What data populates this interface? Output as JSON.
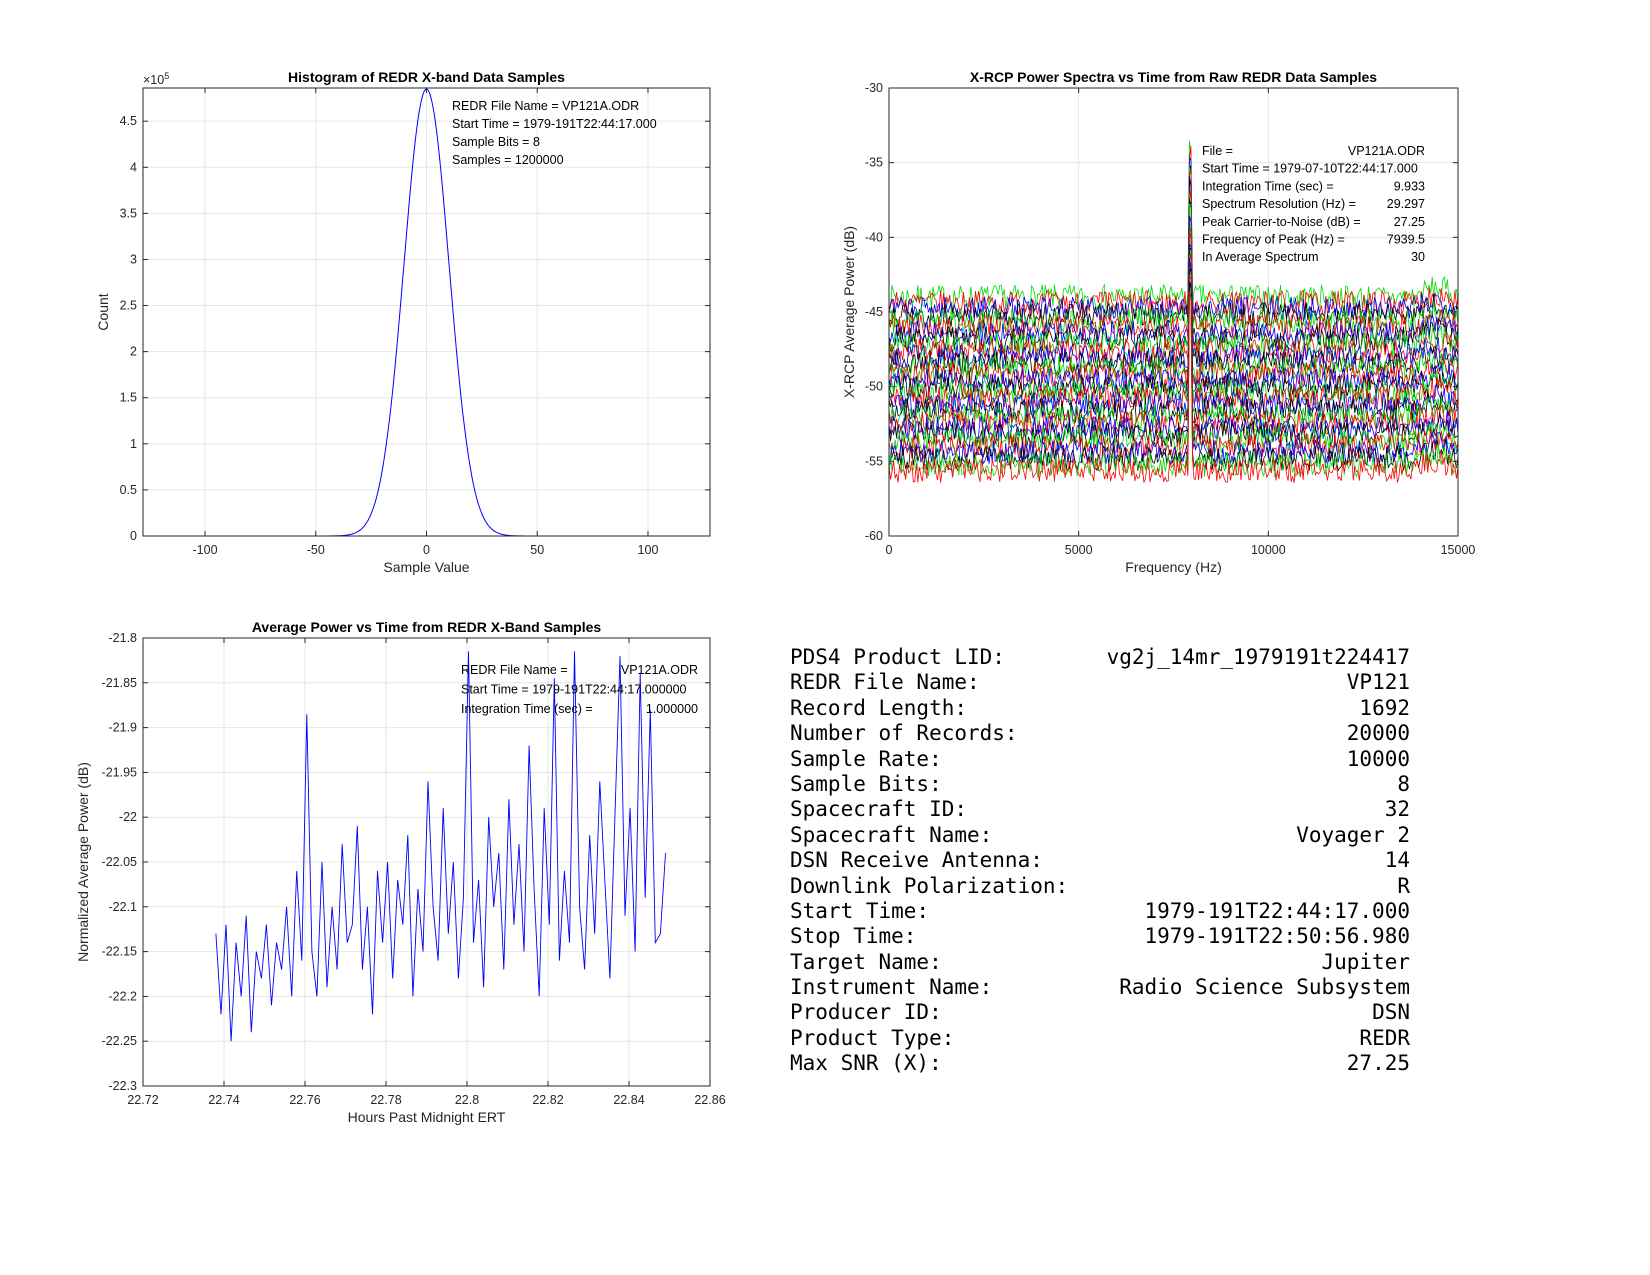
{
  "chart_data": [
    {
      "id": "hist",
      "type": "line",
      "title": "Histogram of REDR X-band Data Samples",
      "xlabel": "Sample Value",
      "ylabel": "Count",
      "xlim": [
        -128,
        128
      ],
      "ylim": [
        0,
        4.86
      ],
      "exponent_label": "×10",
      "exponent_power": "5",
      "xticks": [
        -100,
        -50,
        0,
        50,
        100
      ],
      "xtick_labels": [
        "-100",
        "-50",
        "0",
        "50",
        "100"
      ],
      "yticks": [
        0,
        0.5,
        1,
        1.5,
        2,
        2.5,
        3,
        3.5,
        4,
        4.5
      ],
      "yticks_labels": [
        "0",
        "0.5",
        "1",
        "1.5",
        "2",
        "2.5",
        "3",
        "3.5",
        "4",
        "4.5"
      ],
      "series": [
        {
          "name": "histogram",
          "color": "#0000ff",
          "model": "gaussian",
          "peak": 4.85,
          "mean": 0,
          "sigma": 10.2
        }
      ],
      "grid": true,
      "annotations": [
        "REDR File Name = VP121A.ODR",
        "Start Time = 1979-191T22:44:17.000",
        "Sample Bits = 8",
        "Samples = 1200000"
      ]
    },
    {
      "id": "spec",
      "type": "line",
      "title": "X-RCP Power Spectra vs Time from Raw REDR Data Samples",
      "xlabel": "Frequency (Hz)",
      "ylabel": "X-RCP Average Power (dB)",
      "xlim": [
        0,
        15000
      ],
      "ylim": [
        -60,
        -30
      ],
      "xticks": [
        0,
        5000,
        10000,
        15000
      ],
      "xtick_labels": [
        "0",
        "5000",
        "10000",
        "15000"
      ],
      "yticks": [
        -60,
        -55,
        -50,
        -45,
        -40,
        -35,
        -30
      ],
      "yticks_labels": [
        "-60",
        "-55",
        "-50",
        "-45",
        "-40",
        "-35",
        "-30"
      ],
      "series_colors": [
        "#00dd00",
        "#ff0000",
        "#0000ff",
        "#000000"
      ],
      "num_spectra": 30,
      "baseline_top_db": -44,
      "baseline_bottom_db": -55.6,
      "noise_db": 0.6,
      "peak_frequency_hz": 7939.5,
      "peak_level_db": -34,
      "grid": true,
      "annotations": [
        [
          "File =",
          "VP121A.ODR"
        ],
        [
          "Start Time = 1979-07-10T22:44:17.000",
          ""
        ],
        [
          "Integration Time (sec) =",
          "9.933"
        ],
        [
          "Spectrum Resolution (Hz) =",
          "29.297"
        ],
        [
          "Peak Carrier-to-Noise (dB) =",
          "27.25"
        ],
        [
          "  Frequency of Peak (Hz) =",
          "7939.5"
        ],
        [
          "  In Average Spectrum",
          "30"
        ]
      ]
    },
    {
      "id": "power",
      "type": "line",
      "title": "Average Power vs Time from REDR X-Band Samples",
      "xlabel": "Hours Past Midnight ERT",
      "ylabel": "Normalized Average Power (dB)",
      "xlim": [
        22.72,
        22.86
      ],
      "ylim": [
        -22.3,
        -21.8
      ],
      "xticks": [
        22.72,
        22.74,
        22.76,
        22.78,
        22.8,
        22.82,
        22.84,
        22.86
      ],
      "xtick_labels": [
        "22.72",
        "22.74",
        "22.76",
        "22.78",
        "22.8",
        "22.82",
        "22.84",
        "22.86"
      ],
      "yticks": [
        -22.3,
        -22.25,
        -22.2,
        -22.15,
        -22.1,
        -22.05,
        -22,
        -21.95,
        -21.9,
        -21.85,
        -21.8
      ],
      "yticks_labels": [
        "-22.3",
        "-22.25",
        "-22.2",
        "-22.15",
        "-22.1",
        "-22.05",
        "-22",
        "-21.95",
        "-21.9",
        "-21.85",
        "-21.8"
      ],
      "x_start": 22.738,
      "x_end": 22.849,
      "values": [
        -22.13,
        -22.22,
        -22.12,
        -22.25,
        -22.14,
        -22.2,
        -22.11,
        -22.24,
        -22.15,
        -22.18,
        -22.12,
        -22.21,
        -22.14,
        -22.17,
        -22.1,
        -22.2,
        -22.06,
        -22.16,
        -21.885,
        -22.15,
        -22.2,
        -22.05,
        -22.19,
        -22.1,
        -22.17,
        -22.03,
        -22.14,
        -22.12,
        -22.01,
        -22.17,
        -22.1,
        -22.22,
        -22.06,
        -22.14,
        -22.05,
        -22.18,
        -22.07,
        -22.12,
        -22.02,
        -22.2,
        -22.08,
        -22.15,
        -21.96,
        -22.1,
        -22.16,
        -21.99,
        -22.13,
        -22.05,
        -22.18,
        -22.09,
        -21.815,
        -22.14,
        -22.07,
        -22.19,
        -22.0,
        -22.1,
        -22.04,
        -22.17,
        -21.98,
        -22.12,
        -22.03,
        -22.15,
        -21.92,
        -22.08,
        -22.2,
        -21.99,
        -22.12,
        -21.845,
        -22.16,
        -22.06,
        -22.14,
        -21.815,
        -22.1,
        -22.17,
        -22.02,
        -22.13,
        -21.96,
        -22.07,
        -22.18,
        -22.0,
        -21.82,
        -22.11,
        -21.99,
        -22.15,
        -21.84,
        -22.09,
        -21.88,
        -22.14,
        -22.13,
        -22.04
      ],
      "color": "#0000ff",
      "grid": true,
      "annotations": [
        [
          "REDR File Name =",
          "VP121A.ODR"
        ],
        [
          "Start Time = 1979-191T22:44:17.000000",
          ""
        ],
        [
          "Integration Time (sec) =",
          "1.000000"
        ]
      ]
    }
  ],
  "table": [
    [
      "PDS4 Product LID:",
      "vg2j_14mr_1979191t224417"
    ],
    [
      "REDR File Name:",
      "VP121"
    ],
    [
      "Record Length:",
      "1692"
    ],
    [
      "Number of Records:",
      "20000"
    ],
    [
      "Sample Rate:",
      "10000"
    ],
    [
      "Sample Bits:",
      "8"
    ],
    [
      "Spacecraft ID:",
      "32"
    ],
    [
      "Spacecraft Name:",
      "Voyager 2"
    ],
    [
      "DSN Receive Antenna:",
      "14"
    ],
    [
      "Downlink Polarization:",
      "R"
    ],
    [
      "Start Time:",
      "1979-191T22:44:17.000"
    ],
    [
      "Stop Time:",
      "1979-191T22:50:56.980"
    ],
    [
      "Target Name:",
      "Jupiter"
    ],
    [
      "Instrument Name:",
      "Radio Science Subsystem"
    ],
    [
      "Producer ID:",
      "DSN"
    ],
    [
      "Product Type:",
      "REDR"
    ],
    [
      "Max SNR (X):",
      "27.25"
    ]
  ]
}
